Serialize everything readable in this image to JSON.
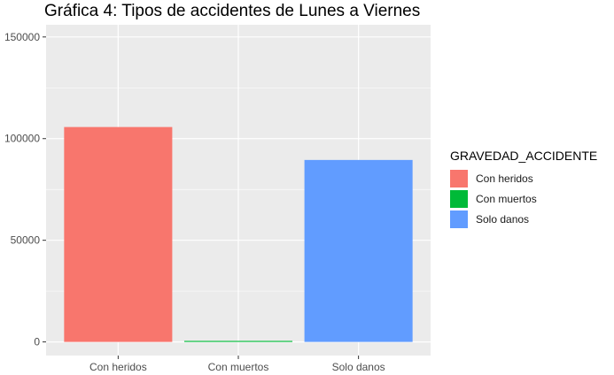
{
  "chart_data": {
    "type": "bar",
    "title": "Gráfica 4: Tipos de accidentes de Lunes a Viernes",
    "xlabel": "",
    "ylabel": "",
    "categories": [
      "Con heridos",
      "Con muertos",
      "Solo danos"
    ],
    "values": [
      105700,
      500,
      89500
    ],
    "colors": [
      "#F8766D",
      "#00BA38",
      "#619CFF"
    ],
    "ylim": [
      -6700,
      156000
    ],
    "yticks": [
      0,
      50000,
      100000,
      150000
    ],
    "ytick_labels": [
      "0",
      "50000",
      "100000",
      "150000"
    ],
    "grid": true,
    "panel_background": "#EBEBEB",
    "legend": {
      "title": "GRAVEDAD_ACCIDENTE",
      "placement": "right",
      "items": [
        {
          "label": "Con heridos",
          "color": "#F8766D"
        },
        {
          "label": "Con muertos",
          "color": "#00BA38"
        },
        {
          "label": "Solo danos",
          "color": "#619CFF"
        }
      ]
    }
  }
}
